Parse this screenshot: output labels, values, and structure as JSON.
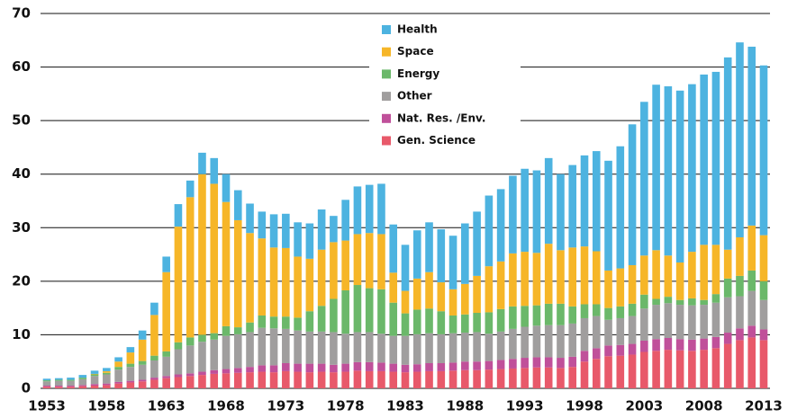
{
  "chart_data": {
    "type": "stacked_bar",
    "categories": [
      "1953",
      null,
      null,
      null,
      null,
      "1958",
      null,
      null,
      null,
      null,
      "1963",
      null,
      null,
      null,
      null,
      "1968",
      null,
      null,
      null,
      null,
      "1973",
      null,
      null,
      null,
      null,
      "1978",
      null,
      null,
      null,
      null,
      "1983",
      null,
      null,
      null,
      null,
      "1988",
      null,
      null,
      null,
      null,
      "1993",
      null,
      null,
      null,
      null,
      "1998",
      null,
      null,
      null,
      null,
      "2003",
      null,
      null,
      null,
      null,
      "2008",
      null,
      null,
      null,
      null,
      "2013"
    ],
    "series": [
      {
        "name": "Gen. Science",
        "color": "#e8596a",
        "values": [
          0.3,
          0.3,
          0.3,
          0.4,
          0.5,
          0.6,
          0.9,
          1.1,
          1.3,
          1.6,
          1.9,
          2.1,
          2.3,
          2.5,
          2.7,
          2.8,
          2.9,
          3.0,
          3.1,
          3.0,
          3.2,
          3.1,
          3.0,
          3.1,
          3.0,
          3.1,
          3.3,
          3.2,
          3.2,
          3.1,
          3.0,
          3.1,
          3.2,
          3.2,
          3.3,
          3.4,
          3.4,
          3.5,
          3.6,
          3.7,
          3.8,
          3.9,
          3.9,
          3.8,
          4.0,
          5.0,
          5.5,
          6.0,
          6.1,
          6.3,
          6.8,
          7.0,
          7.2,
          7.1,
          7.0,
          7.2,
          7.5,
          8.3,
          9.0,
          9.5,
          9.0
        ]
      },
      {
        "name": "Nat. Res. /Env.",
        "color": "#c0509a",
        "values": [
          0.2,
          0.2,
          0.2,
          0.2,
          0.3,
          0.3,
          0.3,
          0.3,
          0.3,
          0.4,
          0.4,
          0.5,
          0.5,
          0.6,
          0.7,
          0.8,
          0.9,
          1.0,
          1.2,
          1.3,
          1.5,
          1.5,
          1.6,
          1.5,
          1.4,
          1.5,
          1.6,
          1.7,
          1.6,
          1.5,
          1.4,
          1.4,
          1.5,
          1.5,
          1.5,
          1.6,
          1.6,
          1.6,
          1.7,
          1.8,
          1.9,
          1.9,
          1.9,
          1.9,
          1.9,
          2.0,
          2.0,
          2.0,
          2.0,
          2.0,
          2.1,
          2.2,
          2.2,
          2.1,
          2.1,
          2.1,
          2.1,
          2.1,
          2.2,
          2.2,
          2.0
        ]
      },
      {
        "name": "Other",
        "color": "#a09e9e",
        "values": [
          0.8,
          0.9,
          0.9,
          1.1,
          1.5,
          1.7,
          2.3,
          2.6,
          2.8,
          3.2,
          3.6,
          4.7,
          5.2,
          5.6,
          5.7,
          6.2,
          6.3,
          6.5,
          7.0,
          6.9,
          6.4,
          6.2,
          6.0,
          6.0,
          6.1,
          5.6,
          5.6,
          5.6,
          5.4,
          5.2,
          5.4,
          5.6,
          5.6,
          5.4,
          5.5,
          5.4,
          5.5,
          5.1,
          5.3,
          5.6,
          5.8,
          5.9,
          6.0,
          6.1,
          6.2,
          6.1,
          6.0,
          4.8,
          5.0,
          5.2,
          6.0,
          6.4,
          6.5,
          6.4,
          6.4,
          6.3,
          6.4,
          6.6,
          6.0,
          6.5,
          5.5
        ]
      },
      {
        "name": "Energy",
        "color": "#6bb86a",
        "values": [
          0.2,
          0.2,
          0.2,
          0.3,
          0.3,
          0.3,
          0.5,
          0.6,
          0.7,
          0.9,
          1.0,
          1.3,
          1.5,
          1.3,
          1.2,
          1.8,
          1.3,
          1.8,
          2.3,
          2.2,
          2.3,
          2.4,
          3.8,
          4.8,
          6.2,
          8.1,
          8.8,
          8.2,
          8.3,
          6.2,
          4.2,
          4.6,
          4.6,
          4.3,
          3.3,
          3.4,
          3.6,
          4.0,
          4.2,
          4.2,
          3.9,
          3.8,
          4.0,
          4.0,
          3.2,
          2.6,
          2.2,
          2.2,
          2.2,
          2.3,
          2.6,
          1.1,
          1.2,
          0.9,
          1.3,
          0.9,
          1.6,
          3.5,
          3.8,
          3.8,
          3.5
        ]
      },
      {
        "name": "Space",
        "color": "#f6b628",
        "values": [
          0,
          0,
          0,
          0,
          0.1,
          0.3,
          1.0,
          2.1,
          4.0,
          7.6,
          14.8,
          21.6,
          26.2,
          30.0,
          27.9,
          23.2,
          20.0,
          16.7,
          14.4,
          12.9,
          12.8,
          11.4,
          9.8,
          10.5,
          10.6,
          9.3,
          9.5,
          10.3,
          10.3,
          5.6,
          4.2,
          5.8,
          6.8,
          5.4,
          4.9,
          5.7,
          6.9,
          8.6,
          8.9,
          9.9,
          10.1,
          9.8,
          11.2,
          10.0,
          11.0,
          10.8,
          9.9,
          7.0,
          7.1,
          7.2,
          7.3,
          9.1,
          7.7,
          7.0,
          8.7,
          10.3,
          9.2,
          5.4,
          7.2,
          8.4,
          8.6
        ]
      },
      {
        "name": "Health",
        "color": "#4db3e0",
        "values": [
          0.3,
          0.3,
          0.4,
          0.5,
          0.6,
          0.6,
          0.8,
          1.0,
          1.7,
          2.3,
          2.9,
          4.2,
          3.1,
          4.0,
          4.8,
          5.2,
          5.6,
          5.5,
          5.0,
          6.2,
          6.4,
          6.4,
          6.6,
          7.5,
          4.9,
          7.6,
          8.9,
          9.0,
          9.4,
          9.0,
          8.6,
          9.0,
          9.3,
          9.9,
          10.0,
          11.3,
          12.0,
          13.2,
          13.5,
          14.5,
          15.5,
          15.4,
          16.0,
          14.2,
          15.4,
          17.0,
          18.7,
          20.5,
          22.8,
          26.3,
          28.7,
          30.9,
          31.6,
          32.1,
          31.3,
          31.8,
          32.3,
          35.9,
          36.4,
          33.4,
          31.7
        ]
      }
    ],
    "ylim": [
      0,
      70
    ],
    "yticks": [
      0,
      10,
      20,
      30,
      40,
      50,
      60,
      70
    ],
    "grid": true
  }
}
